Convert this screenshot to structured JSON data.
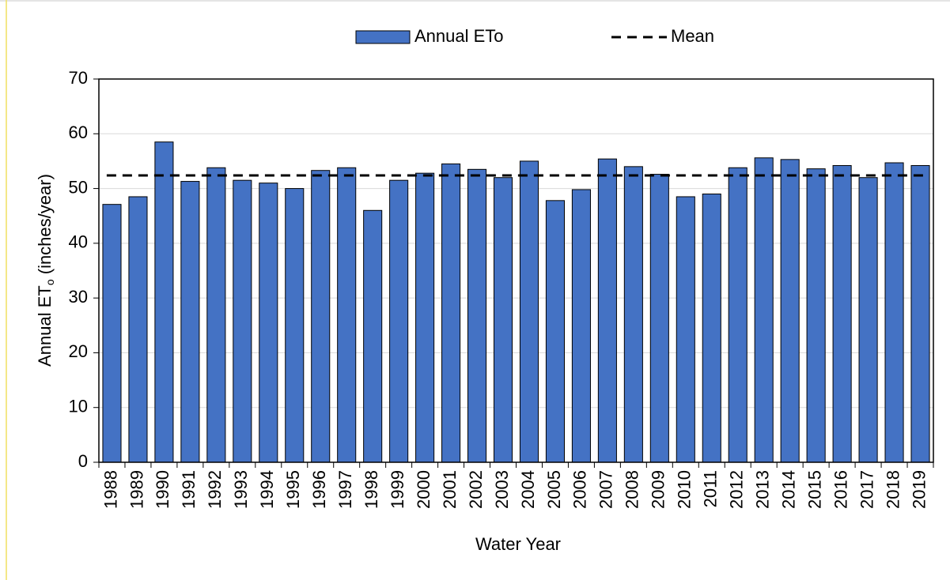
{
  "chart_data": {
    "type": "bar",
    "categories": [
      "1988",
      "1989",
      "1990",
      "1991",
      "1992",
      "1993",
      "1994",
      "1995",
      "1996",
      "1997",
      "1998",
      "1999",
      "2000",
      "2001",
      "2002",
      "2003",
      "2004",
      "2005",
      "2006",
      "2007",
      "2008",
      "2009",
      "2010",
      "2011",
      "2012",
      "2013",
      "2014",
      "2015",
      "2016",
      "2017",
      "2018",
      "2019"
    ],
    "series": [
      {
        "name": "Annual ETo",
        "color": "#4472c4",
        "values": [
          47.1,
          48.5,
          58.5,
          51.3,
          53.8,
          51.5,
          51.0,
          50.0,
          53.3,
          53.8,
          46.0,
          51.5,
          52.8,
          54.5,
          53.5,
          52.0,
          55.0,
          47.8,
          49.8,
          55.4,
          54.0,
          52.6,
          48.5,
          49.0,
          53.8,
          55.6,
          55.3,
          53.6,
          54.2,
          52.0,
          54.7,
          54.2
        ]
      }
    ],
    "mean": {
      "name": "Mean",
      "value": 52.4,
      "color": "#000000"
    },
    "xlabel": "Water Year",
    "ylabel": {
      "text": "Annual ET",
      "subscript": "o",
      "suffix": " (inches/year)"
    },
    "ylim": [
      0,
      70
    ],
    "yticks": [
      0,
      10,
      20,
      30,
      40,
      50,
      60,
      70
    ],
    "grid": true
  }
}
